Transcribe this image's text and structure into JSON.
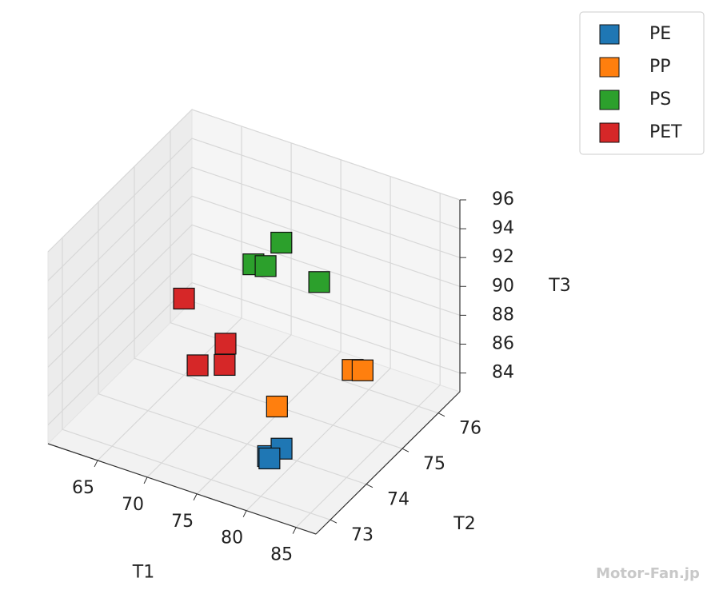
{
  "chart_data": {
    "type": "scatter3d",
    "xlabel": "T1",
    "ylabel": "T2",
    "zlabel": "T3",
    "xlim": [
      60,
      87
    ],
    "ylim": [
      72.6,
      76.6
    ],
    "zlim": [
      82.7,
      96
    ],
    "xticks": [
      65,
      70,
      75,
      80,
      85
    ],
    "yticks": [
      73,
      74,
      75,
      76
    ],
    "zticks": [
      84,
      86,
      88,
      90,
      92,
      94,
      96
    ],
    "grid": true,
    "legend": "upper right",
    "series": [
      {
        "name": "PE",
        "color": "#1f77b4",
        "x": [
          80,
          81,
          80.5
        ],
        "y": [
          73.2,
          73.3,
          73.1
        ],
        "z": [
          85,
          85.5,
          85.2
        ]
      },
      {
        "name": "PP",
        "color": "#ff7f0e",
        "x": [
          78,
          82,
          83
        ],
        "y": [
          74,
          75,
          75
        ],
        "z": [
          86,
          87,
          87.2
        ]
      },
      {
        "name": "PS",
        "color": "#2ca02c",
        "x": [
          72,
          73,
          72.5,
          75
        ],
        "y": [
          75,
          75.5,
          75.2,
          76
        ],
        "z": [
          92,
          92.5,
          91.5,
          89
        ]
      },
      {
        "name": "PET",
        "color": "#d62728",
        "x": [
          65,
          70,
          71,
          72
        ],
        "y": [
          75,
          74,
          74.5,
          74.2
        ],
        "z": [
          88,
          87,
          87.5,
          87
        ]
      }
    ],
    "watermark": "Motor-Fan.jp"
  }
}
